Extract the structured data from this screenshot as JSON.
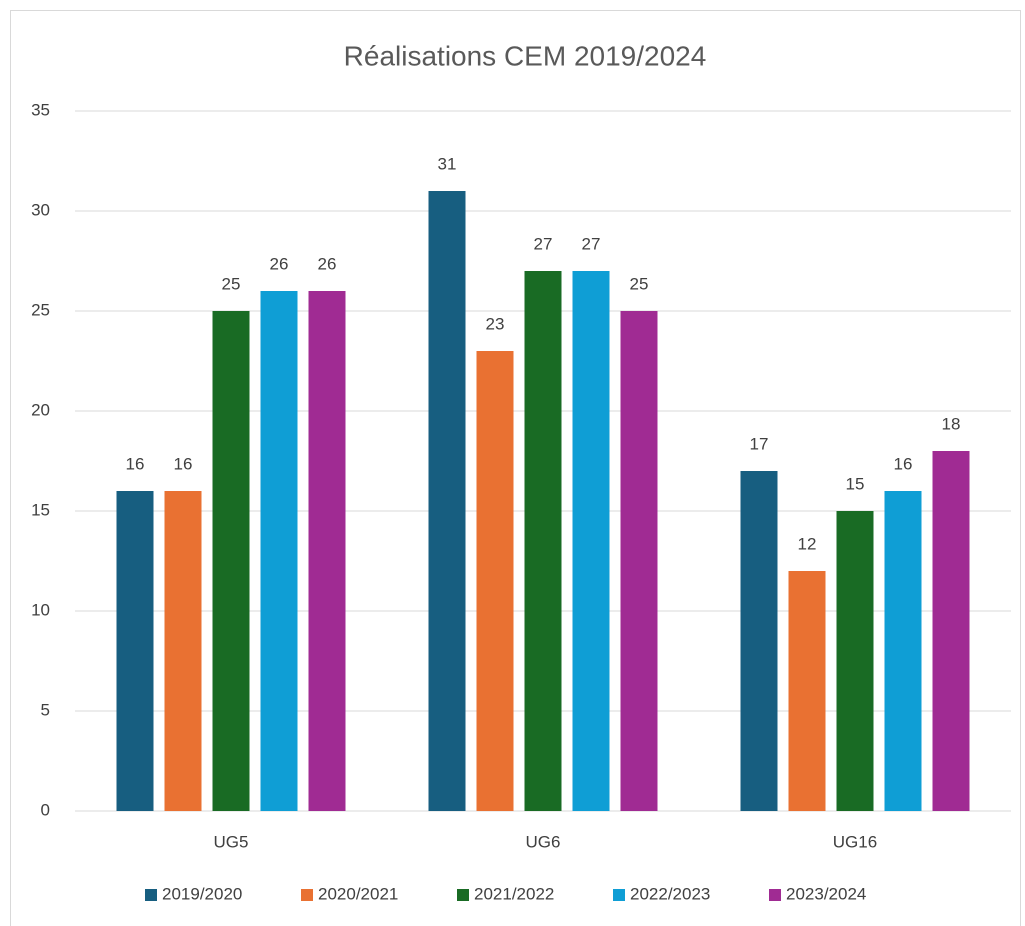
{
  "chart_data": {
    "type": "bar",
    "title": "Réalisations CEM 2019/2024",
    "categories": [
      "UG5",
      "UG6",
      "UG16"
    ],
    "series": [
      {
        "name": "2019/2020",
        "color": "#175e80",
        "values": [
          16,
          31,
          17
        ]
      },
      {
        "name": "2020/2021",
        "color": "#e97132",
        "values": [
          16,
          23,
          12
        ]
      },
      {
        "name": "2021/2022",
        "color": "#196b24",
        "values": [
          25,
          27,
          15
        ]
      },
      {
        "name": "2022/2023",
        "color": "#0f9ed5",
        "values": [
          26,
          27,
          16
        ]
      },
      {
        "name": "2023/2024",
        "color": "#a02b93",
        "values": [
          26,
          25,
          18
        ]
      }
    ],
    "ylim": [
      0,
      35
    ],
    "yticks": [
      0,
      5,
      10,
      15,
      20,
      25,
      30,
      35
    ],
    "grid": true,
    "legend": "bottom"
  }
}
